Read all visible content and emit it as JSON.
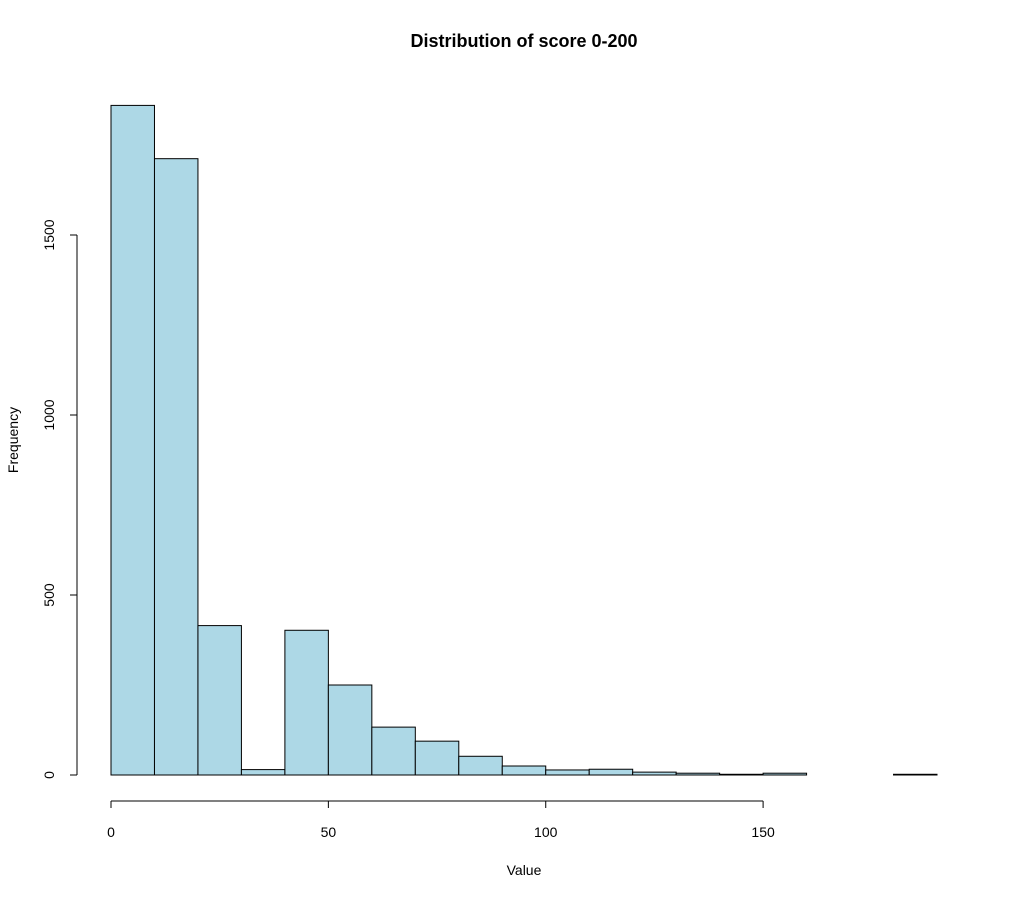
{
  "chart_data": {
    "type": "bar",
    "title": "Distribution of score 0-200",
    "xlabel": "Value",
    "ylabel": "Frequency",
    "bins": [
      {
        "x0": 0,
        "x1": 10,
        "value": 1860
      },
      {
        "x0": 10,
        "x1": 20,
        "value": 1712
      },
      {
        "x0": 20,
        "x1": 30,
        "value": 415
      },
      {
        "x0": 30,
        "x1": 40,
        "value": 15
      },
      {
        "x0": 40,
        "x1": 50,
        "value": 402
      },
      {
        "x0": 50,
        "x1": 60,
        "value": 250
      },
      {
        "x0": 60,
        "x1": 70,
        "value": 133
      },
      {
        "x0": 70,
        "x1": 80,
        "value": 94
      },
      {
        "x0": 80,
        "x1": 90,
        "value": 52
      },
      {
        "x0": 90,
        "x1": 100,
        "value": 25
      },
      {
        "x0": 100,
        "x1": 110,
        "value": 14
      },
      {
        "x0": 110,
        "x1": 120,
        "value": 16
      },
      {
        "x0": 120,
        "x1": 130,
        "value": 8
      },
      {
        "x0": 130,
        "x1": 140,
        "value": 5
      },
      {
        "x0": 140,
        "x1": 150,
        "value": 2
      },
      {
        "x0": 150,
        "x1": 160,
        "value": 5
      },
      {
        "x0": 160,
        "x1": 170,
        "value": 0
      },
      {
        "x0": 170,
        "x1": 180,
        "value": 0
      },
      {
        "x0": 180,
        "x1": 190,
        "value": 2
      }
    ],
    "xlim": [
      0,
      190
    ],
    "ylim": [
      0,
      1860
    ],
    "xticks": [
      "0",
      "50",
      "100",
      "150"
    ],
    "yticks": [
      "0",
      "500",
      "1000",
      "1500"
    ],
    "bar_color": "#ADD8E6",
    "grid": false,
    "legend": false
  }
}
